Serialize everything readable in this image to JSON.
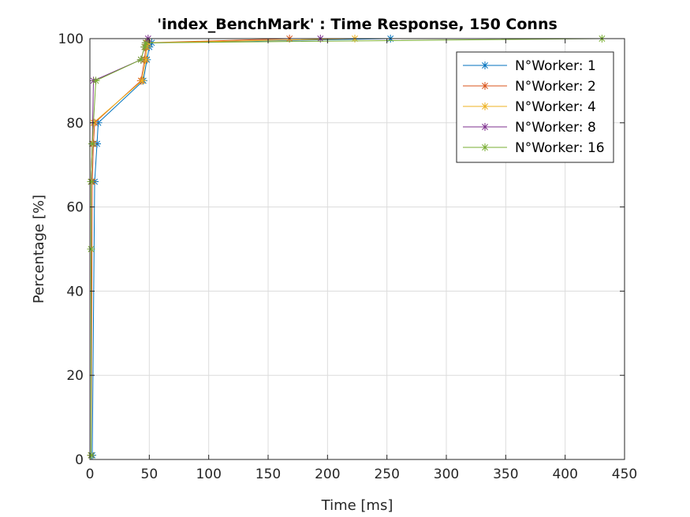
{
  "chart_data": {
    "type": "line",
    "title": "'index_BenchMark' : Time Response, 150 Conns",
    "xlabel": "Time [ms]",
    "ylabel": "Percentage [%]",
    "xlim": [
      0,
      450
    ],
    "ylim": [
      0,
      100
    ],
    "xticks": [
      0,
      50,
      100,
      150,
      200,
      250,
      300,
      350,
      400,
      450
    ],
    "yticks": [
      0,
      20,
      40,
      60,
      80,
      100
    ],
    "grid": true,
    "legend_position": "top-right",
    "marker": "asterisk",
    "series": [
      {
        "name": "N°Worker: 1",
        "color": "#0072BD",
        "x": [
          2,
          4,
          6,
          7,
          45,
          48,
          50,
          52,
          253
        ],
        "y": [
          1,
          66,
          75,
          80,
          90,
          95,
          98,
          99,
          100
        ]
      },
      {
        "name": "N°Worker: 2",
        "color": "#D95319",
        "x": [
          1,
          2,
          3,
          4,
          43,
          46,
          47,
          48,
          168
        ],
        "y": [
          1,
          66,
          75,
          80,
          90,
          95,
          98,
          99,
          100
        ]
      },
      {
        "name": "N°Worker: 4",
        "color": "#EDB120",
        "x": [
          1,
          1,
          2,
          3,
          44,
          47,
          48,
          49,
          223
        ],
        "y": [
          1,
          66,
          75,
          80,
          90,
          95,
          98,
          99,
          100
        ]
      },
      {
        "name": "N°Worker: 8",
        "color": "#7E2F8E",
        "x": [
          1,
          1,
          2,
          3,
          43,
          46,
          47,
          49,
          194
        ],
        "y": [
          1,
          66,
          75,
          90,
          95,
          98,
          99,
          100,
          100
        ]
      },
      {
        "name": "N°Worker: 16",
        "color": "#77AC30",
        "x": [
          1,
          1,
          1,
          2,
          5,
          43,
          46,
          47,
          431
        ],
        "y": [
          1,
          50,
          66,
          75,
          90,
          95,
          98,
          99,
          100
        ]
      }
    ]
  }
}
